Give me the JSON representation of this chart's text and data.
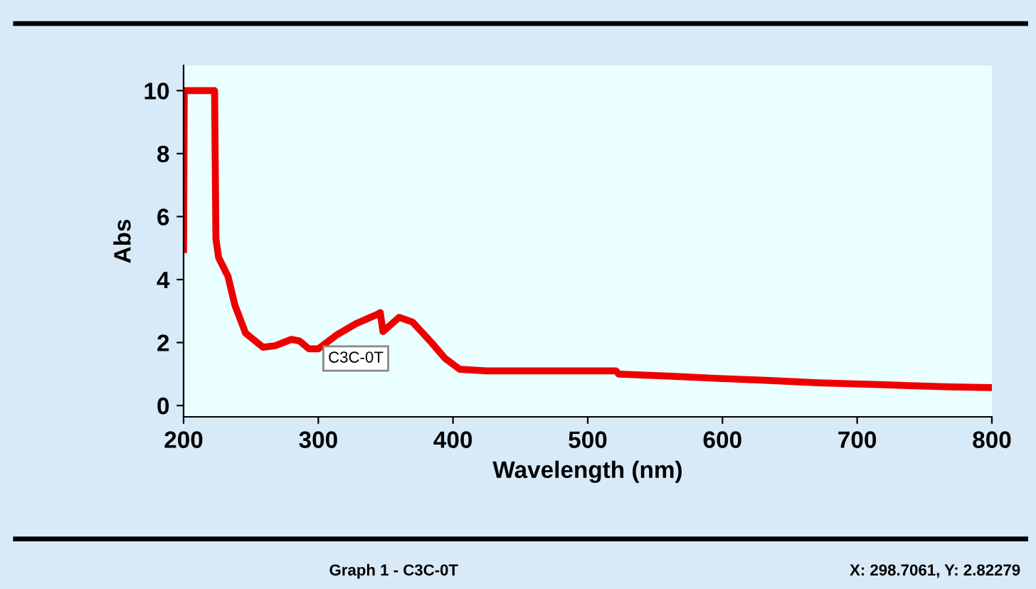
{
  "chart_data": {
    "type": "line",
    "xlabel": "Wavelength (nm)",
    "ylabel": "Abs",
    "xlim": [
      200,
      800
    ],
    "ylim": [
      -0.36,
      10.8
    ],
    "xticks": [
      200,
      300,
      400,
      500,
      600,
      700,
      800
    ],
    "yticks": [
      0,
      2,
      4,
      6,
      8,
      10
    ],
    "grid": false,
    "legend": false,
    "marker": "none",
    "line_style": "solid",
    "series": [
      {
        "color": "#ee0000",
        "x": [
          200,
          200.5,
          223,
          224,
          226,
          233,
          238,
          246,
          259,
          268,
          280,
          286,
          293,
          300,
          314,
          328,
          344,
          346,
          348,
          360,
          370,
          384,
          394,
          405,
          425,
          521,
          523,
          562,
          597,
          632,
          671,
          720,
          769,
          800
        ],
        "values": [
          4.95,
          10,
          10,
          5.3,
          4.7,
          4.1,
          3.2,
          2.3,
          1.85,
          1.9,
          2.1,
          2.05,
          1.8,
          1.8,
          2.25,
          2.6,
          2.9,
          2.95,
          2.35,
          2.8,
          2.65,
          2.0,
          1.5,
          1.15,
          1.1,
          1.1,
          1.0,
          0.93,
          0.86,
          0.8,
          0.72,
          0.66,
          0.59,
          0.57
        ]
      }
    ],
    "annotations": [
      "C3C-0T",
      "Graph 1 - C3C-0T",
      "X: 298.7061, Y: 2.82279"
    ]
  }
}
